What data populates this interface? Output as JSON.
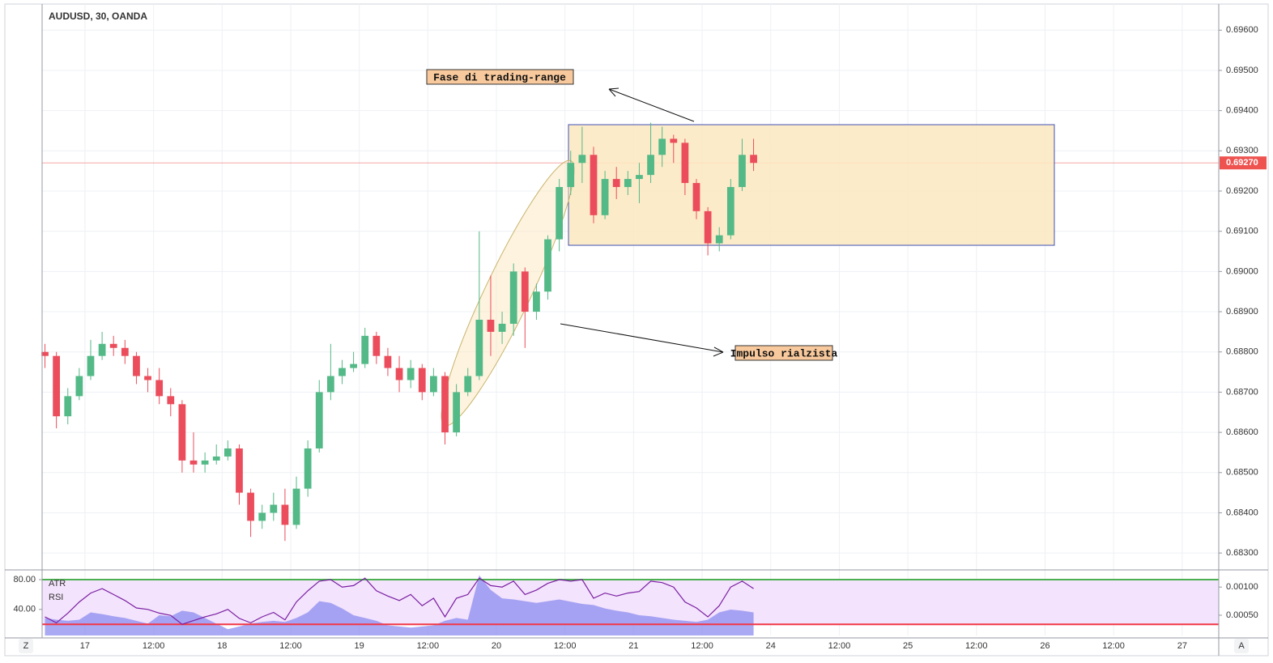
{
  "chart_data": {
    "type": "candlestick",
    "title": "AUDUSD, 30, OANDA",
    "x": [
      -7,
      -5,
      -3,
      -1,
      1,
      3,
      5,
      7,
      9,
      11,
      13,
      15,
      17,
      19,
      21,
      23,
      25,
      27,
      29,
      31,
      33,
      35,
      37,
      39,
      41,
      43,
      45,
      47,
      49,
      51,
      53,
      55,
      57,
      59,
      61,
      63,
      65,
      67,
      69,
      71,
      73,
      75,
      77,
      79,
      81,
      83,
      85,
      87,
      89,
      91,
      93,
      95,
      97,
      99,
      101,
      103,
      105,
      107,
      109,
      111,
      113,
      115,
      117
    ],
    "open": [
      0.688,
      0.6879,
      0.6864,
      0.6869,
      0.6874,
      0.6879,
      0.6882,
      0.6881,
      0.6879,
      0.6874,
      0.6873,
      0.6869,
      0.6867,
      0.6853,
      0.6852,
      0.6853,
      0.6854,
      0.6856,
      0.6845,
      0.6838,
      0.684,
      0.6842,
      0.6837,
      0.6846,
      0.6856,
      0.687,
      0.6874,
      0.6876,
      0.6877,
      0.6884,
      0.6879,
      0.6876,
      0.6873,
      0.6876,
      0.687,
      0.6874,
      0.686,
      0.687,
      0.6874,
      0.6888,
      0.6885,
      0.6887,
      0.69,
      0.689,
      0.6895,
      0.6908,
      0.6921,
      0.6927,
      0.6929,
      0.6914,
      0.6923,
      0.6921,
      0.6923,
      0.6924,
      0.6929,
      0.6933,
      0.6932,
      0.6922,
      0.6915,
      0.6907,
      0.6909,
      0.6921,
      0.6929
    ],
    "high": [
      0.6882,
      0.688,
      0.6871,
      0.6876,
      0.6883,
      0.6885,
      0.6884,
      0.6883,
      0.688,
      0.6876,
      0.6876,
      0.6871,
      0.6868,
      0.686,
      0.6855,
      0.6857,
      0.6858,
      0.6857,
      0.6846,
      0.6842,
      0.6845,
      0.6846,
      0.6849,
      0.6858,
      0.6873,
      0.6882,
      0.6878,
      0.688,
      0.6886,
      0.6885,
      0.6881,
      0.6879,
      0.6878,
      0.6877,
      0.6876,
      0.6875,
      0.6872,
      0.6876,
      0.691,
      0.6899,
      0.689,
      0.6902,
      0.6901,
      0.6897,
      0.6909,
      0.6923,
      0.693,
      0.6936,
      0.6931,
      0.6925,
      0.6926,
      0.6925,
      0.6927,
      0.6937,
      0.6936,
      0.6934,
      0.6933,
      0.6923,
      0.6916,
      0.6911,
      0.6923,
      0.6933,
      0.6933
    ],
    "low": [
      0.6876,
      0.6861,
      0.6862,
      0.6868,
      0.6873,
      0.6878,
      0.6879,
      0.6877,
      0.6872,
      0.687,
      0.6867,
      0.6864,
      0.685,
      0.685,
      0.685,
      0.6852,
      0.6853,
      0.6842,
      0.6834,
      0.6836,
      0.6838,
      0.6833,
      0.6836,
      0.6844,
      0.6855,
      0.6868,
      0.6872,
      0.6875,
      0.6876,
      0.6877,
      0.6874,
      0.687,
      0.6871,
      0.6868,
      0.6869,
      0.6857,
      0.6859,
      0.6869,
      0.6873,
      0.6879,
      0.6882,
      0.6884,
      0.6881,
      0.6888,
      0.6893,
      0.6905,
      0.6919,
      0.6922,
      0.6912,
      0.6913,
      0.6918,
      0.6919,
      0.6917,
      0.6922,
      0.6926,
      0.6927,
      0.6919,
      0.6913,
      0.6904,
      0.6905,
      0.6908,
      0.692,
      0.6925
    ],
    "close": [
      0.6879,
      0.6864,
      0.6869,
      0.6874,
      0.6879,
      0.6882,
      0.6881,
      0.6879,
      0.6874,
      0.6873,
      0.6869,
      0.6867,
      0.6853,
      0.6852,
      0.6853,
      0.6854,
      0.6856,
      0.6845,
      0.6838,
      0.684,
      0.6842,
      0.6837,
      0.6846,
      0.6856,
      0.687,
      0.6874,
      0.6876,
      0.6877,
      0.6884,
      0.6879,
      0.6876,
      0.6873,
      0.6876,
      0.687,
      0.6874,
      0.686,
      0.687,
      0.6874,
      0.6888,
      0.6885,
      0.6887,
      0.69,
      0.689,
      0.6895,
      0.6908,
      0.6921,
      0.6927,
      0.6929,
      0.6914,
      0.6923,
      0.6921,
      0.6923,
      0.6924,
      0.6929,
      0.6933,
      0.6932,
      0.6922,
      0.6915,
      0.6907,
      0.6909,
      0.6921,
      0.6929,
      0.6927
    ],
    "up_color": "#53b987",
    "down_color": "#eb4d5c",
    "xlim": [
      -7.5,
      198.4
    ],
    "ylim": [
      0.6826,
      0.69665
    ],
    "xticks": [
      {
        "value": 0,
        "label": "17"
      },
      {
        "value": 12,
        "label": "12:00"
      },
      {
        "value": 24,
        "label": "18"
      },
      {
        "value": 36,
        "label": "12:00"
      },
      {
        "value": 48,
        "label": "19"
      },
      {
        "value": 60,
        "label": "12:00"
      },
      {
        "value": 72,
        "label": "20"
      },
      {
        "value": 84,
        "label": "12:00"
      },
      {
        "value": 96,
        "label": "21"
      },
      {
        "value": 108,
        "label": "12:00"
      },
      {
        "value": 120,
        "label": "24"
      },
      {
        "value": 132,
        "label": "12:00"
      },
      {
        "value": 144,
        "label": "25"
      },
      {
        "value": 156,
        "label": "12:00"
      },
      {
        "value": 168,
        "label": "26"
      },
      {
        "value": 180,
        "label": "12:00"
      },
      {
        "value": 192,
        "label": "27"
      }
    ],
    "yticks": [
      {
        "value": 0.683,
        "label": "0.68300"
      },
      {
        "value": 0.684,
        "label": "0.68400"
      },
      {
        "value": 0.685,
        "label": "0.68500"
      },
      {
        "value": 0.686,
        "label": "0.68600"
      },
      {
        "value": 0.687,
        "label": "0.68700"
      },
      {
        "value": 0.688,
        "label": "0.68800"
      },
      {
        "value": 0.689,
        "label": "0.68900"
      },
      {
        "value": 0.69,
        "label": "0.69000"
      },
      {
        "value": 0.691,
        "label": "0.69100"
      },
      {
        "value": 0.692,
        "label": "0.69200"
      },
      {
        "value": 0.693,
        "label": "0.69300"
      },
      {
        "value": 0.694,
        "label": "0.69400"
      },
      {
        "value": 0.695,
        "label": "0.69500"
      },
      {
        "value": 0.696,
        "label": "0.69600"
      }
    ],
    "grid": true,
    "last_price": {
      "value": 0.6927,
      "label": "0.69270",
      "color": "#ef5350"
    },
    "annotations": [
      "Fase di trading-range",
      "Impulso rialzista"
    ],
    "indicators": [
      {
        "name": "ATR",
        "type": "area",
        "color": "#8c8cf0",
        "ylim": [
          0.00014,
          0.00129
        ],
        "yticks": [
          {
            "value": 0.001,
            "label": "0.00100"
          },
          {
            "value": 0.0005,
            "label": "0.00050"
          }
        ],
        "values": [
          0.00045,
          0.00042,
          0.0004,
          0.00042,
          0.00055,
          0.00052,
          0.00048,
          0.00045,
          0.0004,
          0.00035,
          0.0005,
          0.00048,
          0.00058,
          0.00055,
          0.00045,
          0.00035,
          0.00025,
          0.0003,
          0.00035,
          0.00038,
          0.0004,
          0.00038,
          0.00045,
          0.00055,
          0.00075,
          0.00072,
          0.00062,
          0.0005,
          0.00045,
          0.0004,
          0.00032,
          0.0003,
          0.00028,
          0.0003,
          0.00032,
          0.0004,
          0.00045,
          0.00042,
          0.00121,
          0.00095,
          0.0008,
          0.00078,
          0.00075,
          0.00072,
          0.00075,
          0.00078,
          0.00074,
          0.0007,
          0.00068,
          0.00062,
          0.00058,
          0.00055,
          0.0005,
          0.00048,
          0.00045,
          0.00042,
          0.0004,
          0.00038,
          0.00042,
          0.00055,
          0.0006,
          0.00058,
          0.00055
        ]
      },
      {
        "name": "RSI",
        "type": "line",
        "color": "#7b1fa2",
        "ylim": [
          5,
          92
        ],
        "yticks": [
          {
            "value": 80,
            "label": "80.00"
          },
          {
            "value": 40,
            "label": "40.00"
          }
        ],
        "bands": [
          {
            "value": 80,
            "color": "#4caf50"
          },
          {
            "value": 20,
            "color": "#f23645"
          }
        ],
        "band_fill": "#f3e3fc",
        "values": [
          30,
          22,
          35,
          50,
          62,
          68,
          60,
          52,
          42,
          40,
          35,
          32,
          20,
          25,
          30,
          34,
          40,
          28,
          22,
          30,
          36,
          26,
          50,
          65,
          78,
          80,
          70,
          72,
          82,
          65,
          58,
          52,
          60,
          45,
          55,
          30,
          55,
          60,
          82,
          72,
          70,
          78,
          60,
          66,
          75,
          80,
          78,
          80,
          55,
          62,
          58,
          62,
          64,
          78,
          76,
          70,
          50,
          42,
          30,
          45,
          70,
          78,
          68
        ]
      }
    ]
  },
  "controls": [
    "Z",
    "A"
  ]
}
